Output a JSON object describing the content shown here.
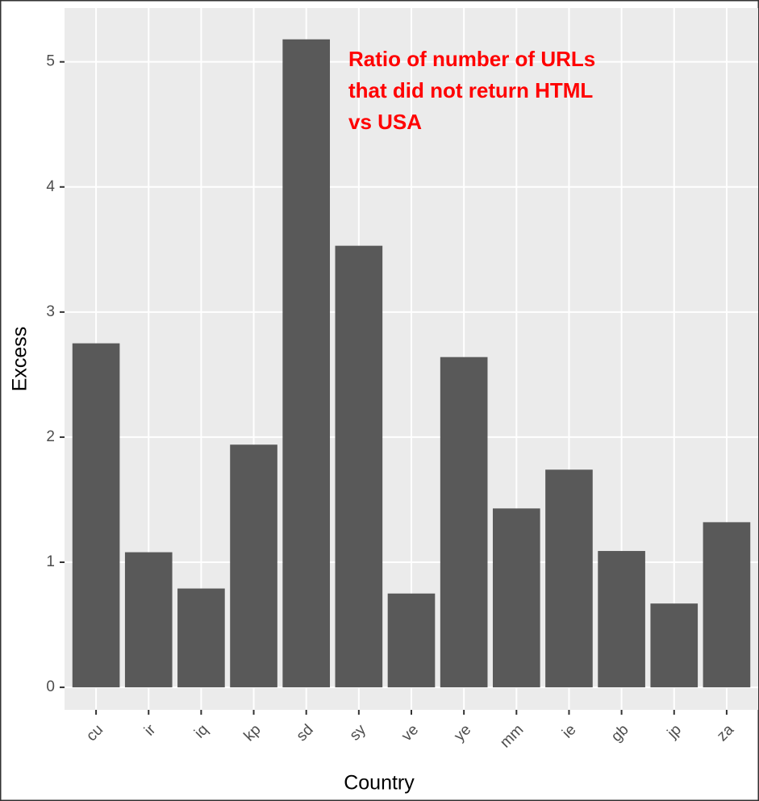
{
  "chart_data": {
    "type": "bar",
    "annotation": [
      "Ratio of number of URLs",
      "that did not return HTML",
      "vs USA"
    ],
    "x_label": "Country",
    "y_label": "Excess",
    "categories": [
      "cu",
      "ir",
      "iq",
      "kp",
      "sd",
      "sy",
      "ve",
      "ye",
      "mm",
      "ie",
      "gb",
      "jp",
      "za"
    ],
    "values": [
      2.75,
      1.08,
      0.79,
      1.94,
      5.18,
      3.53,
      0.75,
      2.64,
      1.43,
      1.74,
      1.09,
      0.67,
      1.32
    ],
    "color": "#595959",
    "annotation_color": "#ff0000",
    "ylim": [
      -0.18,
      5.43
    ],
    "yticks": [
      0,
      1,
      2,
      3,
      4,
      5
    ],
    "grid": true
  }
}
